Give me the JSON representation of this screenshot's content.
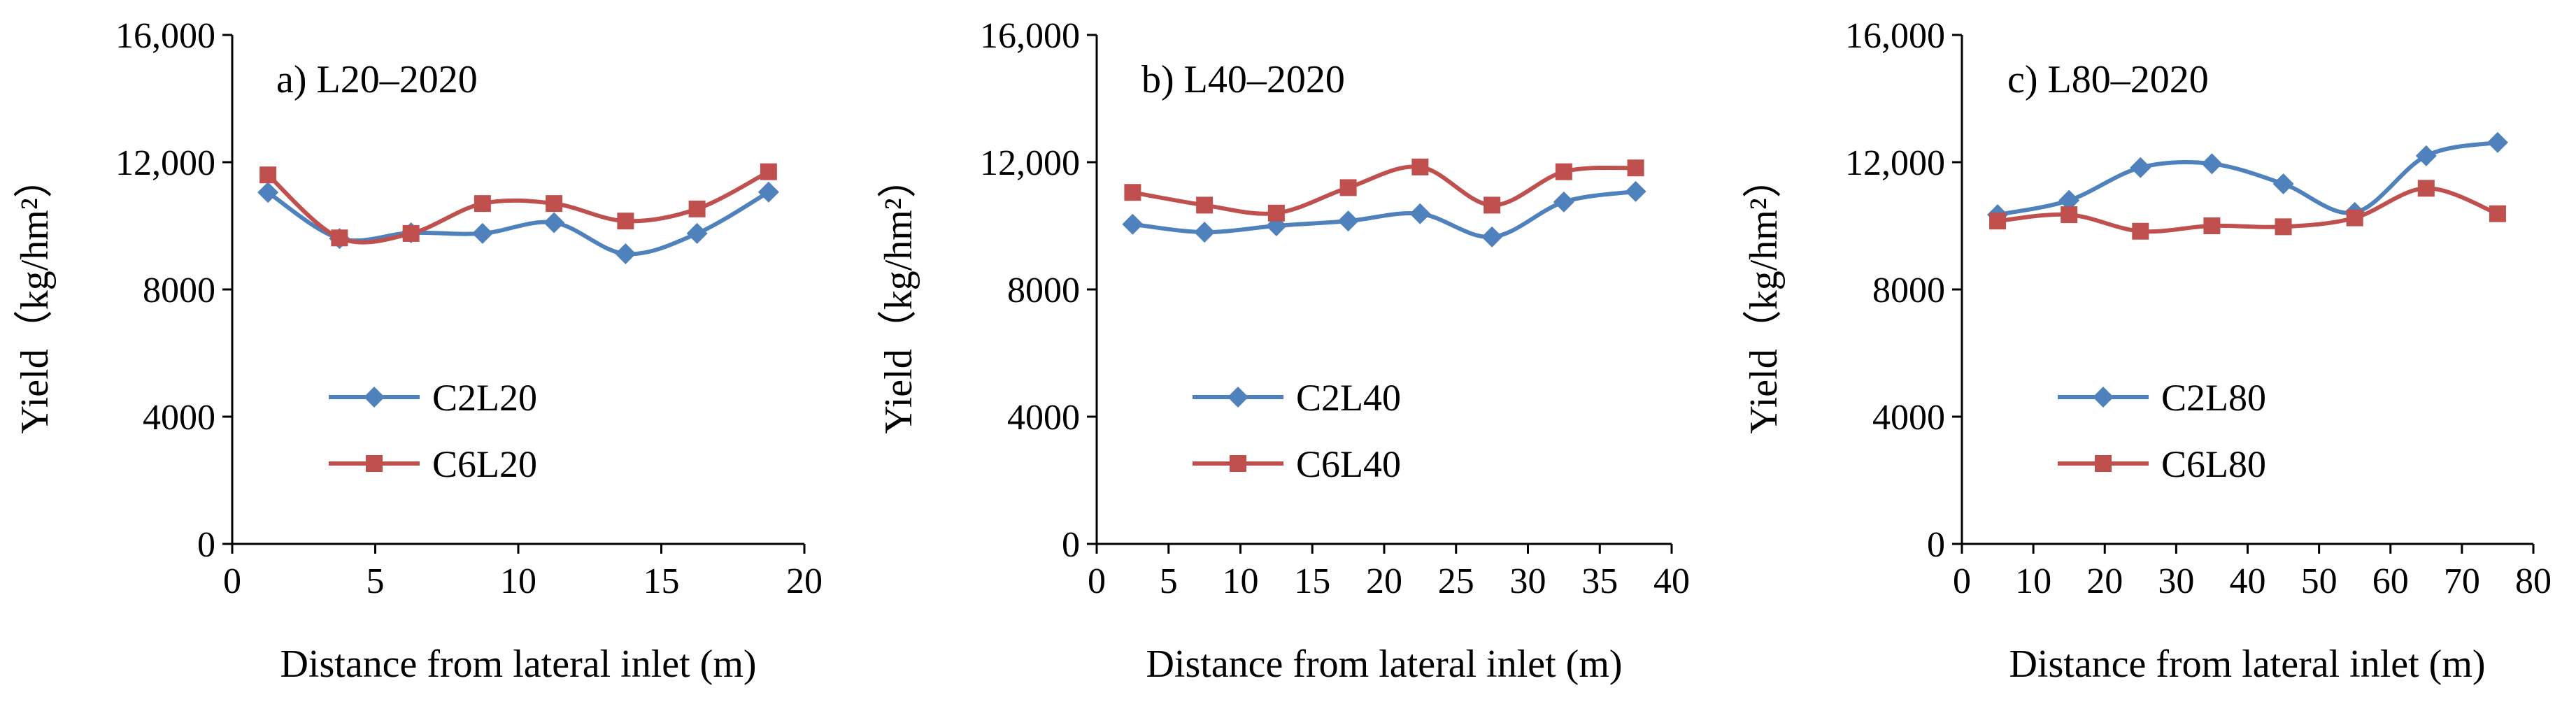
{
  "chart_data": [
    {
      "type": "line",
      "title": "a) L20‒2020",
      "xlabel": "Distance from lateral inlet (m)",
      "ylabel": "Yield（kg/hm²）",
      "xlim": [
        0,
        20
      ],
      "ylim": [
        0,
        16000
      ],
      "xticks": [
        0,
        5,
        10,
        15,
        20
      ],
      "xtick_labels": [
        "0",
        "5",
        "10",
        "15",
        "20"
      ],
      "yticks": [
        0,
        4000,
        8000,
        12000,
        16000
      ],
      "ytick_labels": [
        "0",
        "4000",
        "8000",
        "12,000",
        "16,000"
      ],
      "legend_position": "lower-left",
      "x": [
        1.25,
        3.75,
        6.25,
        8.75,
        11.25,
        13.75,
        16.25,
        18.75
      ],
      "series": [
        {
          "name": "C2L20",
          "color": "#4F81BD",
          "marker": "diamond",
          "values": [
            11050,
            9600,
            9780,
            9760,
            10100,
            9120,
            9760,
            11060
          ]
        },
        {
          "name": "C6L20",
          "color": "#C0504D",
          "marker": "square",
          "values": [
            11600,
            9620,
            9760,
            10700,
            10700,
            10150,
            10530,
            11700
          ]
        }
      ]
    },
    {
      "type": "line",
      "title": "b) L40‒2020",
      "xlabel": "Distance from lateral inlet (m)",
      "ylabel": "Yield（kg/hm²）",
      "xlim": [
        0,
        40
      ],
      "ylim": [
        0,
        16000
      ],
      "xticks": [
        0,
        5,
        10,
        15,
        20,
        25,
        30,
        35,
        40
      ],
      "xtick_labels": [
        "0",
        "5",
        "10",
        "15",
        "20",
        "25",
        "30",
        "35",
        "40"
      ],
      "yticks": [
        0,
        4000,
        8000,
        12000,
        16000
      ],
      "ytick_labels": [
        "0",
        "4000",
        "8000",
        "12,000",
        "16,000"
      ],
      "legend_position": "lower-left",
      "x": [
        2.5,
        7.5,
        12.5,
        17.5,
        22.5,
        27.5,
        32.5,
        37.5
      ],
      "series": [
        {
          "name": "C2L40",
          "color": "#4F81BD",
          "marker": "diamond",
          "values": [
            10050,
            9800,
            10000,
            10150,
            10380,
            9650,
            10750,
            11080
          ]
        },
        {
          "name": "C6L40",
          "color": "#C0504D",
          "marker": "square",
          "values": [
            11050,
            10650,
            10400,
            11200,
            11850,
            10650,
            11700,
            11820
          ]
        }
      ]
    },
    {
      "type": "line",
      "title": "c) L80‒2020",
      "xlabel": "Distance from lateral inlet (m)",
      "ylabel": "Yield（kg/hm²）",
      "xlim": [
        0,
        80
      ],
      "ylim": [
        0,
        16000
      ],
      "xticks": [
        0,
        10,
        20,
        30,
        40,
        50,
        60,
        70,
        80
      ],
      "xtick_labels": [
        "0",
        "10",
        "20",
        "30",
        "40",
        "50",
        "60",
        "70",
        "80"
      ],
      "yticks": [
        0,
        4000,
        8000,
        12000,
        16000
      ],
      "ytick_labels": [
        "0",
        "4000",
        "8000",
        "12,000",
        "16,000"
      ],
      "legend_position": "lower-left",
      "x": [
        5,
        15,
        25,
        35,
        45,
        55,
        65,
        75
      ],
      "series": [
        {
          "name": "C2L80",
          "color": "#4F81BD",
          "marker": "diamond",
          "values": [
            10350,
            10800,
            11830,
            11950,
            11320,
            10420,
            12200,
            12620
          ]
        },
        {
          "name": "C6L80",
          "color": "#C0504D",
          "marker": "square",
          "values": [
            10150,
            10350,
            9830,
            10000,
            9970,
            10250,
            11180,
            10380
          ]
        }
      ]
    }
  ]
}
